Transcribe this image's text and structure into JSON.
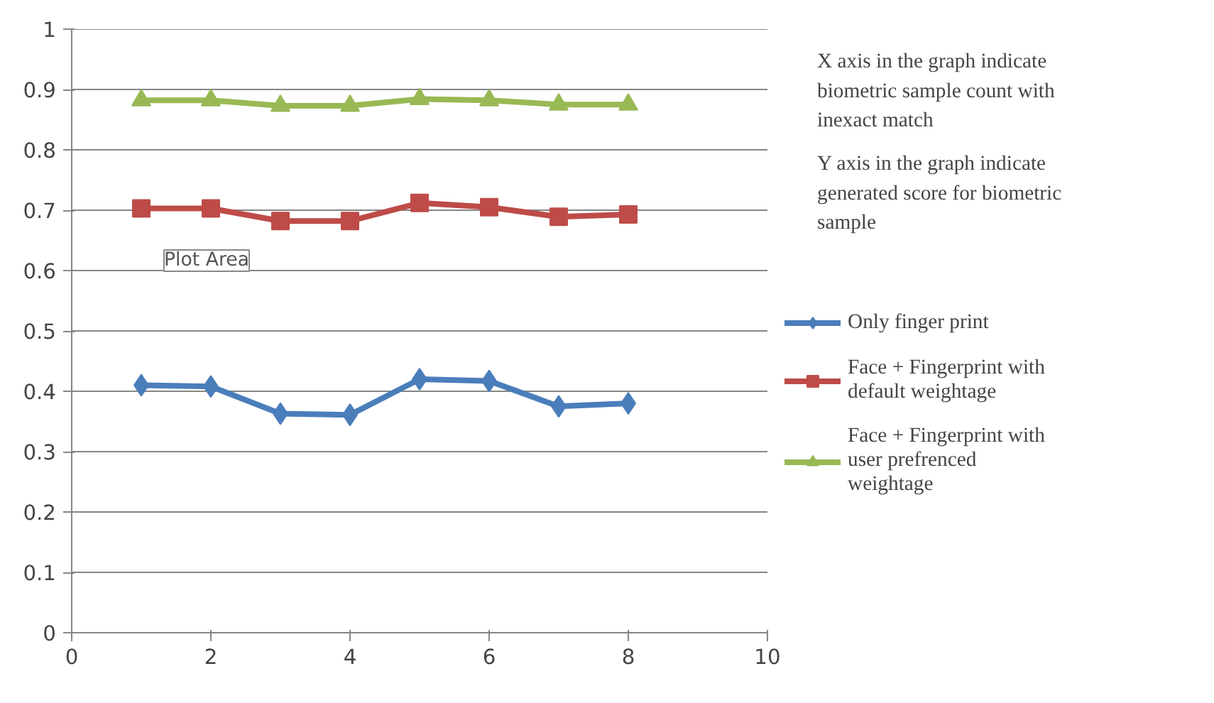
{
  "chart_data": {
    "type": "line",
    "x": [
      1,
      2,
      3,
      4,
      5,
      6,
      7,
      8
    ],
    "series": [
      {
        "name": "Only finger print",
        "color": "#4a7ebb",
        "marker": "diamond",
        "values": [
          0.41,
          0.408,
          0.363,
          0.361,
          0.42,
          0.417,
          0.375,
          0.38
        ]
      },
      {
        "name": "Face + Fingerprint with default weightage",
        "color": "#be4b48",
        "marker": "square",
        "values": [
          0.703,
          0.703,
          0.682,
          0.682,
          0.712,
          0.705,
          0.689,
          0.693
        ]
      },
      {
        "name": "Face + Fingerprint with user prefrenced weightage",
        "color": "#98b954",
        "marker": "triangle",
        "values": [
          0.882,
          0.882,
          0.873,
          0.873,
          0.884,
          0.882,
          0.875,
          0.875
        ]
      }
    ],
    "xlim": [
      0,
      10
    ],
    "xticks": [
      0,
      2,
      4,
      6,
      8,
      10
    ],
    "ylim": [
      0,
      1
    ],
    "yticks": [
      0,
      0.1,
      0.2,
      0.3,
      0.4,
      0.5,
      0.6,
      0.7,
      0.8,
      0.9,
      1
    ],
    "grid": "y",
    "legend": "right",
    "line_style": "solid",
    "annotations": [
      "X axis in the graph indicate biometric sample count with inexact match",
      "Y axis in the graph indicate generated score for biometric sample",
      "Plot Area"
    ]
  }
}
